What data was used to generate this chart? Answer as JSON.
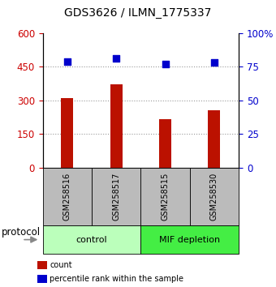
{
  "title": "GDS3626 / ILMN_1775337",
  "samples": [
    "GSM258516",
    "GSM258517",
    "GSM258515",
    "GSM258530"
  ],
  "counts": [
    310,
    370,
    215,
    255
  ],
  "percentile_ranks": [
    79,
    81,
    77,
    78
  ],
  "groups": [
    {
      "label": "control",
      "indices": [
        0,
        1
      ],
      "color": "#bbffbb"
    },
    {
      "label": "MIF depletion",
      "indices": [
        2,
        3
      ],
      "color": "#44ee44"
    }
  ],
  "bar_color": "#bb1100",
  "scatter_color": "#0000cc",
  "left_ylim": [
    0,
    600
  ],
  "left_yticks": [
    0,
    150,
    300,
    450,
    600
  ],
  "right_ylim": [
    0,
    100
  ],
  "right_yticks": [
    0,
    25,
    50,
    75,
    100
  ],
  "ytick_color_left": "#cc0000",
  "ytick_color_right": "#0000cc",
  "bg_color": "#ffffff",
  "sample_box_color": "#bbbbbb",
  "grid_color": "#999999",
  "legend_items": [
    {
      "label": "count",
      "color": "#bb1100"
    },
    {
      "label": "percentile rank within the sample",
      "color": "#0000cc"
    }
  ]
}
